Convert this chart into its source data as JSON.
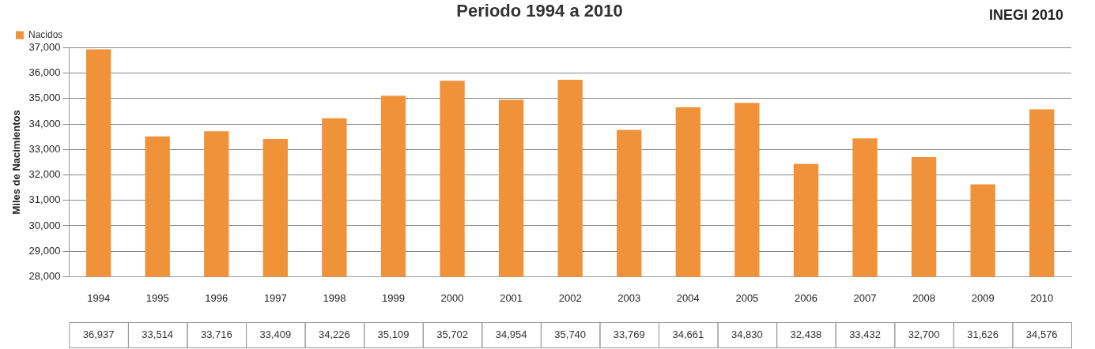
{
  "chart_data": {
    "type": "bar",
    "title": "Periodo 1994 a 2010",
    "ylabel": "Miles de Nacimientos",
    "annotations": [
      "INEGI 2010"
    ],
    "categories": [
      "1994",
      "1995",
      "1996",
      "1997",
      "1998",
      "1999",
      "2000",
      "2001",
      "2002",
      "2003",
      "2004",
      "2005",
      "2006",
      "2007",
      "2008",
      "2009",
      "2010"
    ],
    "series": [
      {
        "name": "Nacidos",
        "color": "#f0923a",
        "values": [
          36937,
          33514,
          33716,
          33409,
          34226,
          35109,
          35702,
          34954,
          35740,
          33769,
          34661,
          34830,
          32438,
          33432,
          32700,
          31626,
          34576
        ],
        "value_labels": [
          "36,937",
          "33,514",
          "33,716",
          "33,409",
          "34,226",
          "35,109",
          "35,702",
          "34,954",
          "35,740",
          "33,769",
          "34,661",
          "34,830",
          "32,438",
          "33,432",
          "32,700",
          "31,626",
          "34,576"
        ]
      }
    ],
    "ylim": [
      28000,
      37000
    ],
    "yticks": [
      {
        "value": 28000,
        "label": "28,000"
      },
      {
        "value": 29000,
        "label": "29,000"
      },
      {
        "value": 30000,
        "label": "30,000"
      },
      {
        "value": 31000,
        "label": "31,000"
      },
      {
        "value": 32000,
        "label": "32,000"
      },
      {
        "value": 33000,
        "label": "33,000"
      },
      {
        "value": 34000,
        "label": "34,000"
      },
      {
        "value": 35000,
        "label": "35,000"
      },
      {
        "value": 36000,
        "label": "36,000"
      },
      {
        "value": 37000,
        "label": "37,000"
      }
    ],
    "grid": "y",
    "legend": "top left"
  }
}
